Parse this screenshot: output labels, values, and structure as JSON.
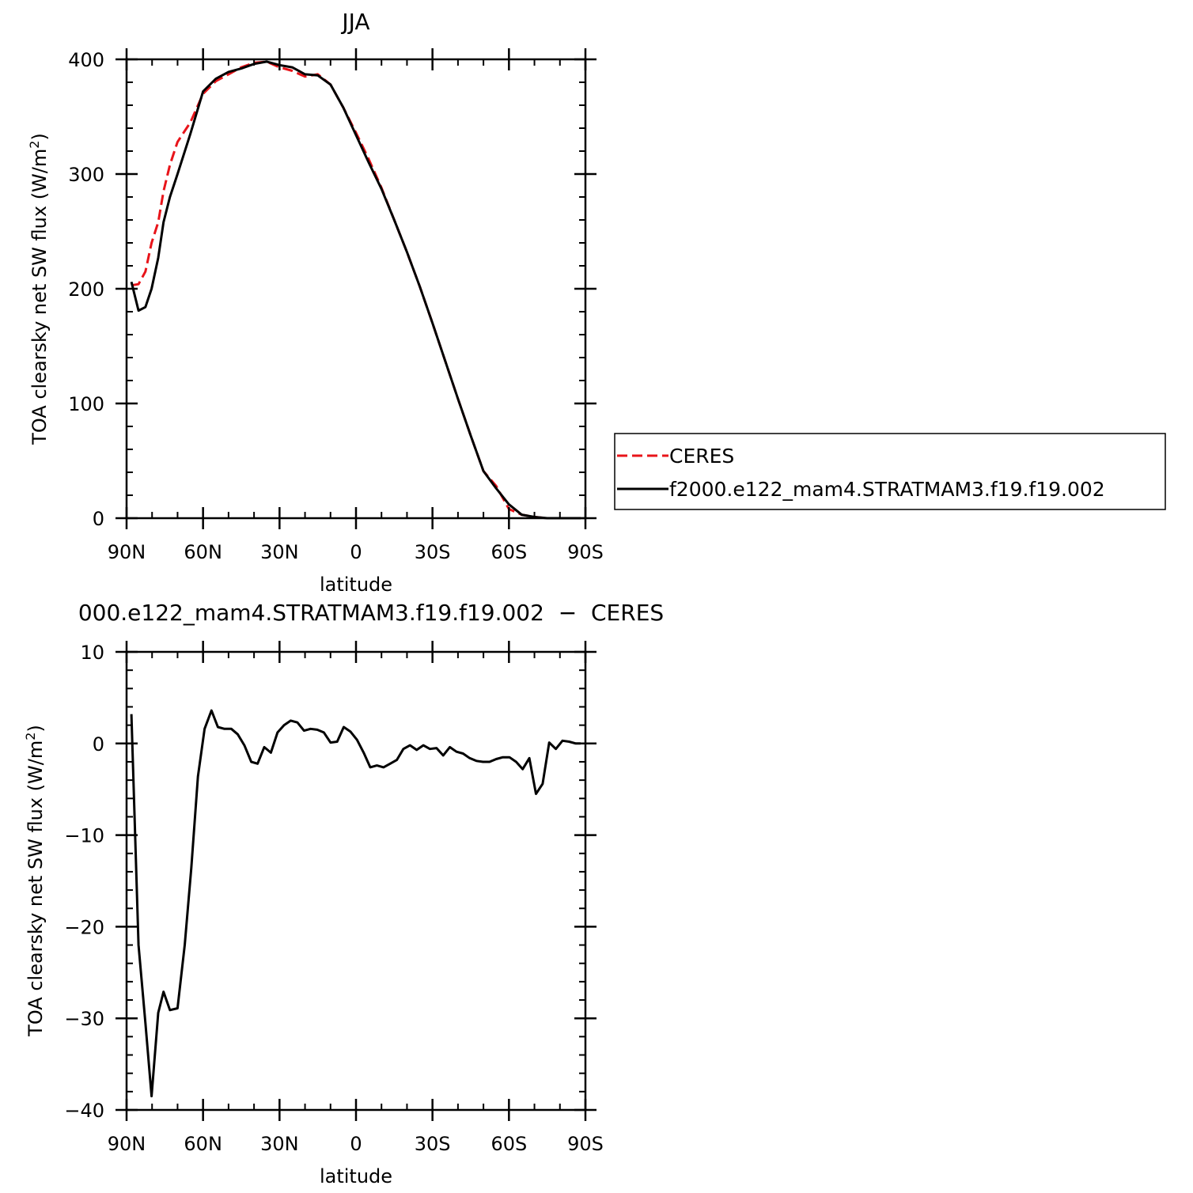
{
  "chart_data": [
    {
      "type": "line",
      "title": "JJA",
      "xlabel": "latitude",
      "ylabel": "TOA clearsky net SW flux (W/m",
      "ylabel_sup": "2",
      "ylabel_close": ")",
      "xlim": [
        90,
        -90
      ],
      "ylim": [
        0,
        400
      ],
      "x_ticks": [
        {
          "value": 90,
          "label": "90N"
        },
        {
          "value": 60,
          "label": "60N"
        },
        {
          "value": 30,
          "label": "30N"
        },
        {
          "value": 0,
          "label": "0"
        },
        {
          "value": -30,
          "label": "30S"
        },
        {
          "value": -60,
          "label": "60S"
        },
        {
          "value": -90,
          "label": "90S"
        }
      ],
      "y_ticks": [
        {
          "value": 0,
          "label": "0"
        },
        {
          "value": 100,
          "label": "100"
        },
        {
          "value": 200,
          "label": "200"
        },
        {
          "value": 300,
          "label": "300"
        },
        {
          "value": 400,
          "label": "400"
        }
      ],
      "legend": "right-outside",
      "series": [
        {
          "name": "CERES",
          "color": "#e8141a",
          "dash": "dashed",
          "x": [
            88.1,
            85.3,
            82.6,
            80.2,
            77.6,
            75.5,
            73.0,
            70.0,
            65.0,
            60.0,
            55.0,
            50.0,
            45.0,
            40.0,
            35.0,
            30.0,
            25.0,
            20.0,
            15.0,
            10.0,
            5.0,
            0.0,
            -5.0,
            -10.0,
            -15.0,
            -20.0,
            -25.0,
            -30.0,
            -35.0,
            -40.0,
            -45.0,
            -50.0,
            -55.0,
            -60.0,
            -65.0,
            -70.0,
            -75.0,
            -80.0,
            -85.0,
            -88.1
          ],
          "values": [
            203,
            204,
            215,
            240,
            258,
            285,
            308,
            328,
            345,
            370,
            381,
            387,
            393,
            397,
            398,
            393,
            390,
            385,
            387,
            378,
            358,
            336,
            313,
            288,
            260,
            232,
            202,
            170,
            137,
            104,
            72,
            41,
            28,
            8,
            3,
            1,
            0,
            0,
            0,
            0
          ]
        },
        {
          "name": "f2000.e122_mam4.STRATMAM3.f19.f19.002",
          "color": "#000000",
          "dash": "solid",
          "x": [
            88.1,
            85.3,
            82.6,
            80.2,
            77.6,
            75.5,
            73.0,
            70.0,
            65.0,
            60.0,
            55.0,
            50.0,
            45.0,
            40.0,
            35.0,
            30.0,
            25.0,
            20.0,
            15.0,
            10.0,
            5.0,
            0.0,
            -5.0,
            -10.0,
            -15.0,
            -20.0,
            -25.0,
            -30.0,
            -35.0,
            -40.0,
            -45.0,
            -50.0,
            -55.0,
            -60.0,
            -65.0,
            -70.0,
            -75.0,
            -80.0,
            -85.0,
            -88.1
          ],
          "values": [
            206,
            181,
            184,
            200,
            227,
            258,
            280,
            300,
            335,
            372,
            383,
            389,
            392,
            396,
            398,
            395,
            393,
            387,
            386,
            378,
            358,
            334,
            310,
            287,
            260,
            232,
            202,
            170,
            137,
            104,
            72,
            41,
            26,
            12,
            3,
            1,
            0,
            0,
            0,
            0
          ]
        }
      ]
    },
    {
      "type": "line",
      "title": "000.e122_mam4.STRATMAM3.f19.f19.002  −  CERES",
      "xlabel": "latitude",
      "ylabel": "TOA clearsky net SW flux (W/m",
      "ylabel_sup": "2",
      "ylabel_close": ")",
      "xlim": [
        90,
        -90
      ],
      "ylim": [
        -40,
        10
      ],
      "x_ticks": [
        {
          "value": 90,
          "label": "90N"
        },
        {
          "value": 60,
          "label": "60N"
        },
        {
          "value": 30,
          "label": "30N"
        },
        {
          "value": 0,
          "label": "0"
        },
        {
          "value": -30,
          "label": "30S"
        },
        {
          "value": -60,
          "label": "60S"
        },
        {
          "value": -90,
          "label": "90S"
        }
      ],
      "y_ticks": [
        {
          "value": -40,
          "label": "−40"
        },
        {
          "value": -30,
          "label": "−30"
        },
        {
          "value": -20,
          "label": "−20"
        },
        {
          "value": -10,
          "label": "−10"
        },
        {
          "value": 0,
          "label": "0"
        },
        {
          "value": 10,
          "label": "10"
        }
      ],
      "series": [
        {
          "name": "",
          "color": "#000000",
          "dash": "solid",
          "x": [
            88.1,
            85.3,
            82.6,
            80.2,
            77.6,
            75.5,
            73.0,
            70.0,
            67.2,
            64.6,
            62.0,
            59.4,
            56.7,
            54.2,
            51.6,
            48.9,
            46.4,
            43.8,
            41.1,
            38.6,
            36.0,
            33.4,
            30.8,
            28.2,
            25.6,
            23.0,
            20.4,
            17.8,
            15.2,
            12.6,
            10.0,
            7.4,
            4.8,
            2.2,
            -0.4,
            -3.0,
            -5.6,
            -8.2,
            -10.8,
            -13.4,
            -16.0,
            -18.6,
            -21.2,
            -23.8,
            -26.4,
            -29.0,
            -31.6,
            -34.2,
            -36.8,
            -39.4,
            -42.0,
            -44.6,
            -47.2,
            -49.8,
            -52.4,
            -55.0,
            -57.6,
            -60.2,
            -62.8,
            -65.4,
            -68.0,
            -70.6,
            -73.2,
            -75.8,
            -78.4,
            -81.0,
            -83.6,
            -86.2,
            -88.1
          ],
          "values": [
            3.2,
            -22.0,
            -30.5,
            -38.5,
            -29.4,
            -27.1,
            -29.1,
            -28.9,
            -22.0,
            -13.6,
            -3.6,
            1.6,
            3.6,
            1.8,
            1.6,
            1.6,
            1.0,
            -0.2,
            -2.0,
            -2.2,
            -0.4,
            -1.0,
            1.2,
            2.0,
            2.5,
            2.3,
            1.4,
            1.6,
            1.5,
            1.2,
            0.1,
            0.2,
            1.8,
            1.3,
            0.4,
            -1.0,
            -2.6,
            -2.4,
            -2.6,
            -2.2,
            -1.8,
            -0.6,
            -0.2,
            -0.7,
            -0.2,
            -0.6,
            -0.5,
            -1.3,
            -0.4,
            -0.9,
            -1.1,
            -1.6,
            -1.9,
            -2.0,
            -2.0,
            -1.7,
            -1.5,
            -1.5,
            -2.0,
            -2.8,
            -1.6,
            -5.5,
            -4.4,
            0.1,
            -0.6,
            0.3,
            0.2,
            0.0,
            0.0
          ]
        }
      ]
    }
  ]
}
